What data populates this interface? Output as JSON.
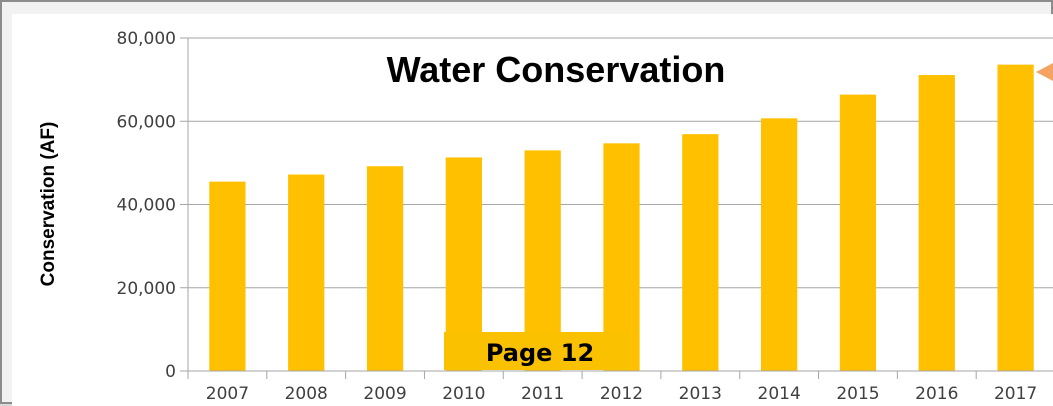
{
  "page_label": "Page 12",
  "colors": {
    "bar": "#FFC000",
    "gridline": "#a6a6a6",
    "pointer_arrow": "#F4A460"
  },
  "chart_data": {
    "type": "bar",
    "title": "Water Conservation",
    "xlabel": "",
    "ylabel": "Conservation (AF)",
    "categories": [
      "2007",
      "2008",
      "2009",
      "2010",
      "2011",
      "2012",
      "2013",
      "2014",
      "2015",
      "2016",
      "2017"
    ],
    "values": [
      45500,
      47200,
      49200,
      51300,
      53000,
      54700,
      56900,
      60700,
      66400,
      71100,
      73600
    ],
    "ylim": [
      0,
      80000
    ],
    "yticks": [
      0,
      20000,
      40000,
      60000,
      80000
    ],
    "ytick_labels": [
      "0",
      "20,000",
      "40,000",
      "60,000",
      "80,000"
    ],
    "grid": true,
    "legend": "none"
  }
}
